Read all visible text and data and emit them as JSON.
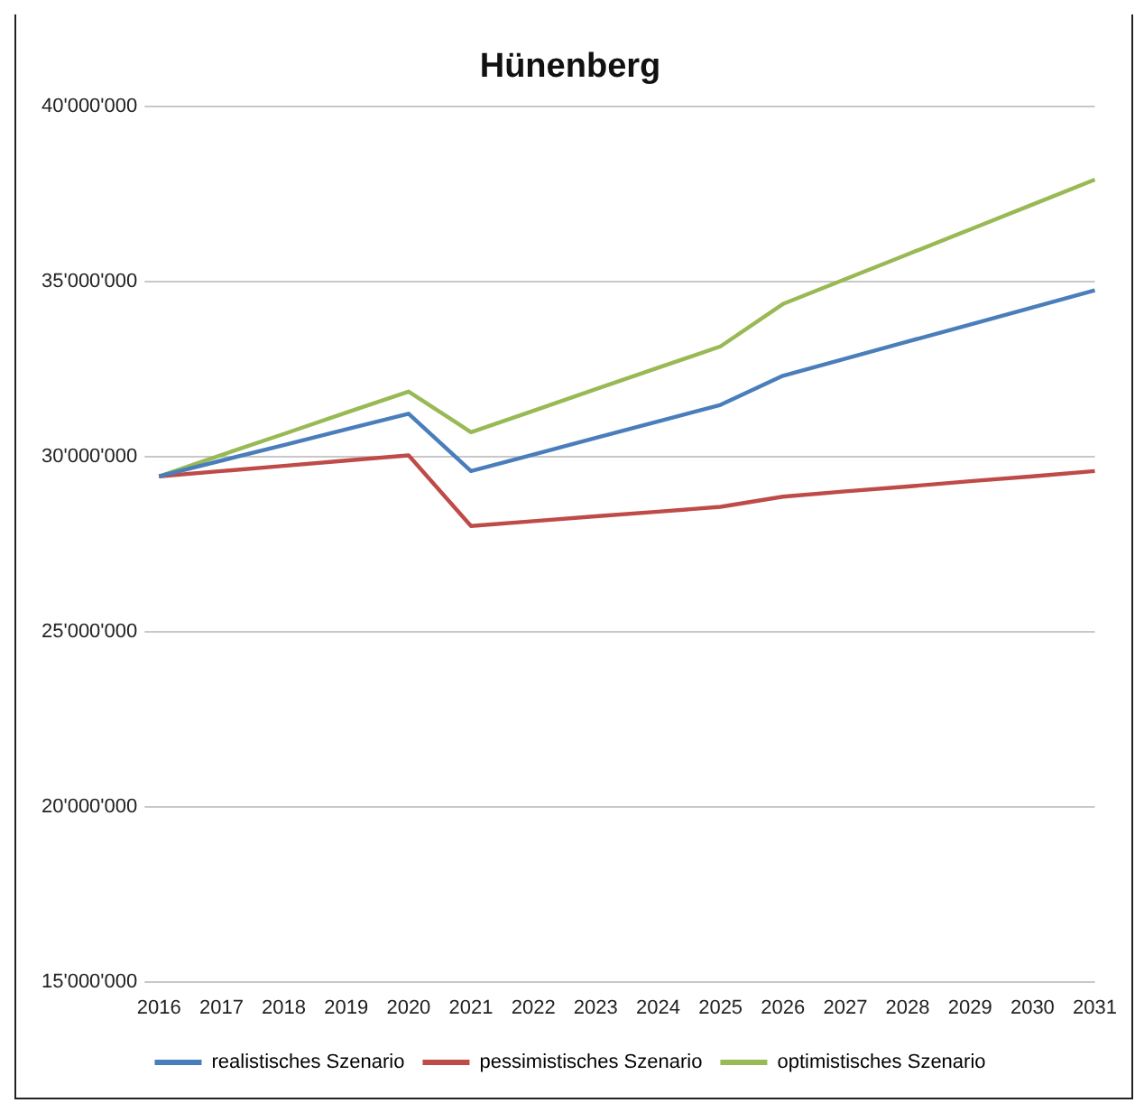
{
  "chart_data": {
    "type": "line",
    "title": "Hünenberg",
    "categories": [
      "2016",
      "2017",
      "2018",
      "2019",
      "2020",
      "2021",
      "2022",
      "2023",
      "2024",
      "2025",
      "2026",
      "2027",
      "2028",
      "2029",
      "2030",
      "2031"
    ],
    "series": [
      {
        "name": "realistisches Szenario",
        "color": "#4a7ebb",
        "values": [
          29430000,
          29880000,
          30320000,
          30770000,
          31220000,
          29580000,
          30050000,
          30530000,
          31000000,
          31470000,
          32300000,
          32790000,
          33280000,
          33760000,
          34250000,
          34740000
        ]
      },
      {
        "name": "pessimistisches Szenario",
        "color": "#be4b48",
        "values": [
          29430000,
          29580000,
          29730000,
          29880000,
          30030000,
          28010000,
          28150000,
          28290000,
          28420000,
          28560000,
          28850000,
          29000000,
          29140000,
          29290000,
          29430000,
          29580000
        ]
      },
      {
        "name": "optimistisches Szenario",
        "color": "#98b954",
        "values": [
          29430000,
          30040000,
          30640000,
          31250000,
          31850000,
          30690000,
          31300000,
          31920000,
          32530000,
          33140000,
          34350000,
          35060000,
          35770000,
          36480000,
          37190000,
          37900000
        ]
      }
    ],
    "ylim": [
      15000000,
      40000000
    ],
    "yticks": [
      {
        "value": 15000000,
        "label": "15'000'000"
      },
      {
        "value": 20000000,
        "label": "20'000'000"
      },
      {
        "value": 25000000,
        "label": "25'000'000"
      },
      {
        "value": 30000000,
        "label": "30'000'000"
      },
      {
        "value": 35000000,
        "label": "35'000'000"
      },
      {
        "value": 40000000,
        "label": "40'000'000"
      }
    ],
    "grid": "y",
    "legend": "bottom",
    "marker": "none",
    "line_style": "solid"
  }
}
